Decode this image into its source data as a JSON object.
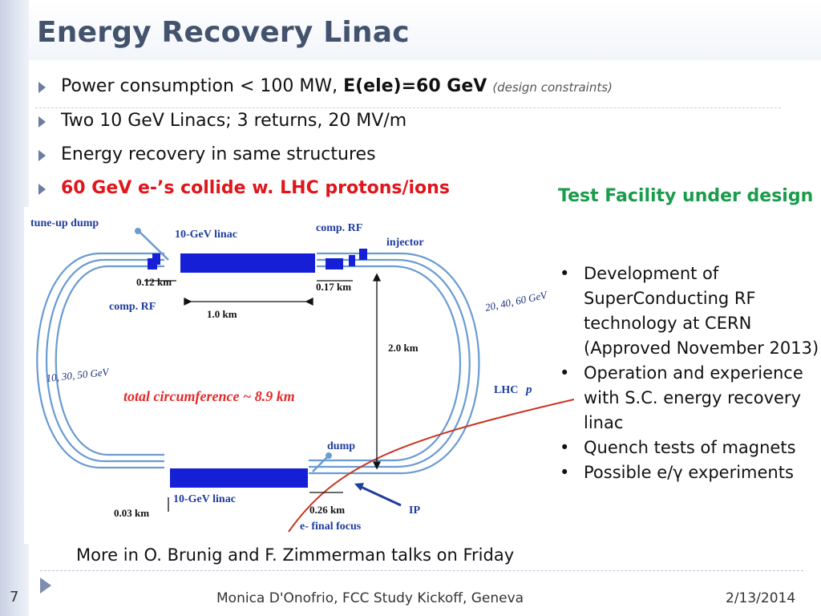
{
  "slide": {
    "title": "Energy Recovery Linac",
    "bullets": [
      {
        "text": "Power consumption < 100 MW, ",
        "bold": "E(ele)=60 GeV",
        "note": "(design constraints)"
      },
      {
        "text": "Two 10 GeV Linacs; 3 returns, 20 MV/m"
      },
      {
        "text": "Energy recovery in same structures"
      },
      {
        "text": "60 GeV e-’s collide w. LHC protons/ions"
      }
    ],
    "side_title": "Test Facility under design",
    "side_items": [
      "Development of SuperConducting RF technology at CERN (Approved November 2013)",
      "Operation and experience with S.C. energy recovery linac",
      "Quench tests of magnets",
      "Possible e/γ experiments"
    ],
    "side_bullet_char": "•",
    "more_text": "More in O. Brunig and F. Zimmerman talks on Friday"
  },
  "diagram": {
    "labels": {
      "tune_up_dump": "tune-up dump",
      "linac_top": "10-GeV linac",
      "comp_rf_top": "comp. RF",
      "injector": "injector",
      "d012": "0.12 km",
      "d017": "0.17 km",
      "comp_rf_left": "comp. RF",
      "d10": "1.0 km",
      "energies_right": "20, 40, 60 GeV",
      "d20": "2.0 km",
      "energies_left": "10, 30, 50 GeV",
      "circumference": "total circumference ~ 8.9 km",
      "lhc": "LHC",
      "lhc_p": "p",
      "dump": "dump",
      "linac_bottom": "10-GeV linac",
      "d003": "0.03 km",
      "d026": "0.26 km",
      "ip": "IP",
      "final_focus": "e- final focus"
    },
    "colors": {
      "ring": "#6a9bd1",
      "linac": "#1520d6",
      "proton": "#c8341f",
      "label_blue": "#1f3d9e",
      "circ_red": "#e32a2a"
    }
  },
  "footer": {
    "page": "7",
    "center": "Monica D'Onofrio, FCC Study Kickoff, Geneva",
    "date": "2/13/2014"
  }
}
